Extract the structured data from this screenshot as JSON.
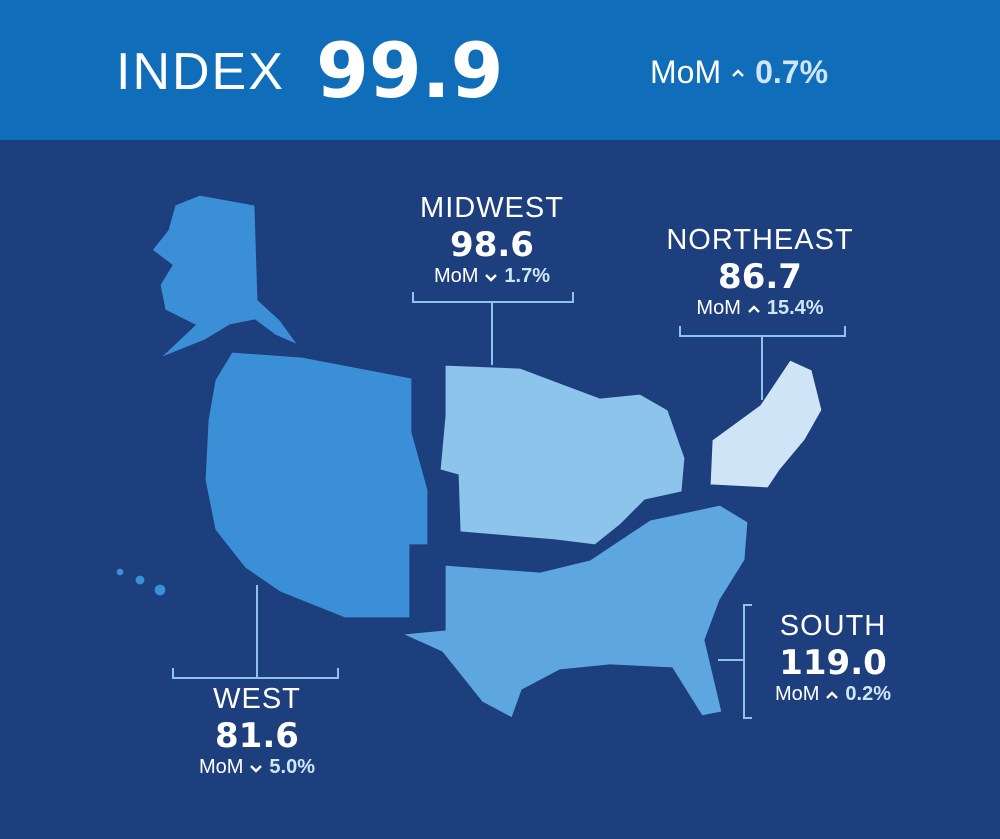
{
  "header": {
    "label": "INDEX",
    "value": "99.9",
    "mom_label": "MoM",
    "mom_direction": "up",
    "mom_change": "0.7%"
  },
  "regions": [
    {
      "name": "MIDWEST",
      "value": "98.6",
      "mom_label": "MoM",
      "mom_direction": "down",
      "mom_change": "1.7%"
    },
    {
      "name": "NORTHEAST",
      "value": "86.7",
      "mom_label": "MoM",
      "mom_direction": "up",
      "mom_change": "15.4%"
    },
    {
      "name": "SOUTH",
      "value": "119.0",
      "mom_label": "MoM",
      "mom_direction": "up",
      "mom_change": "0.2%"
    },
    {
      "name": "WEST",
      "value": "81.6",
      "mom_label": "MoM",
      "mom_direction": "down",
      "mom_change": "5.0%"
    }
  ]
}
